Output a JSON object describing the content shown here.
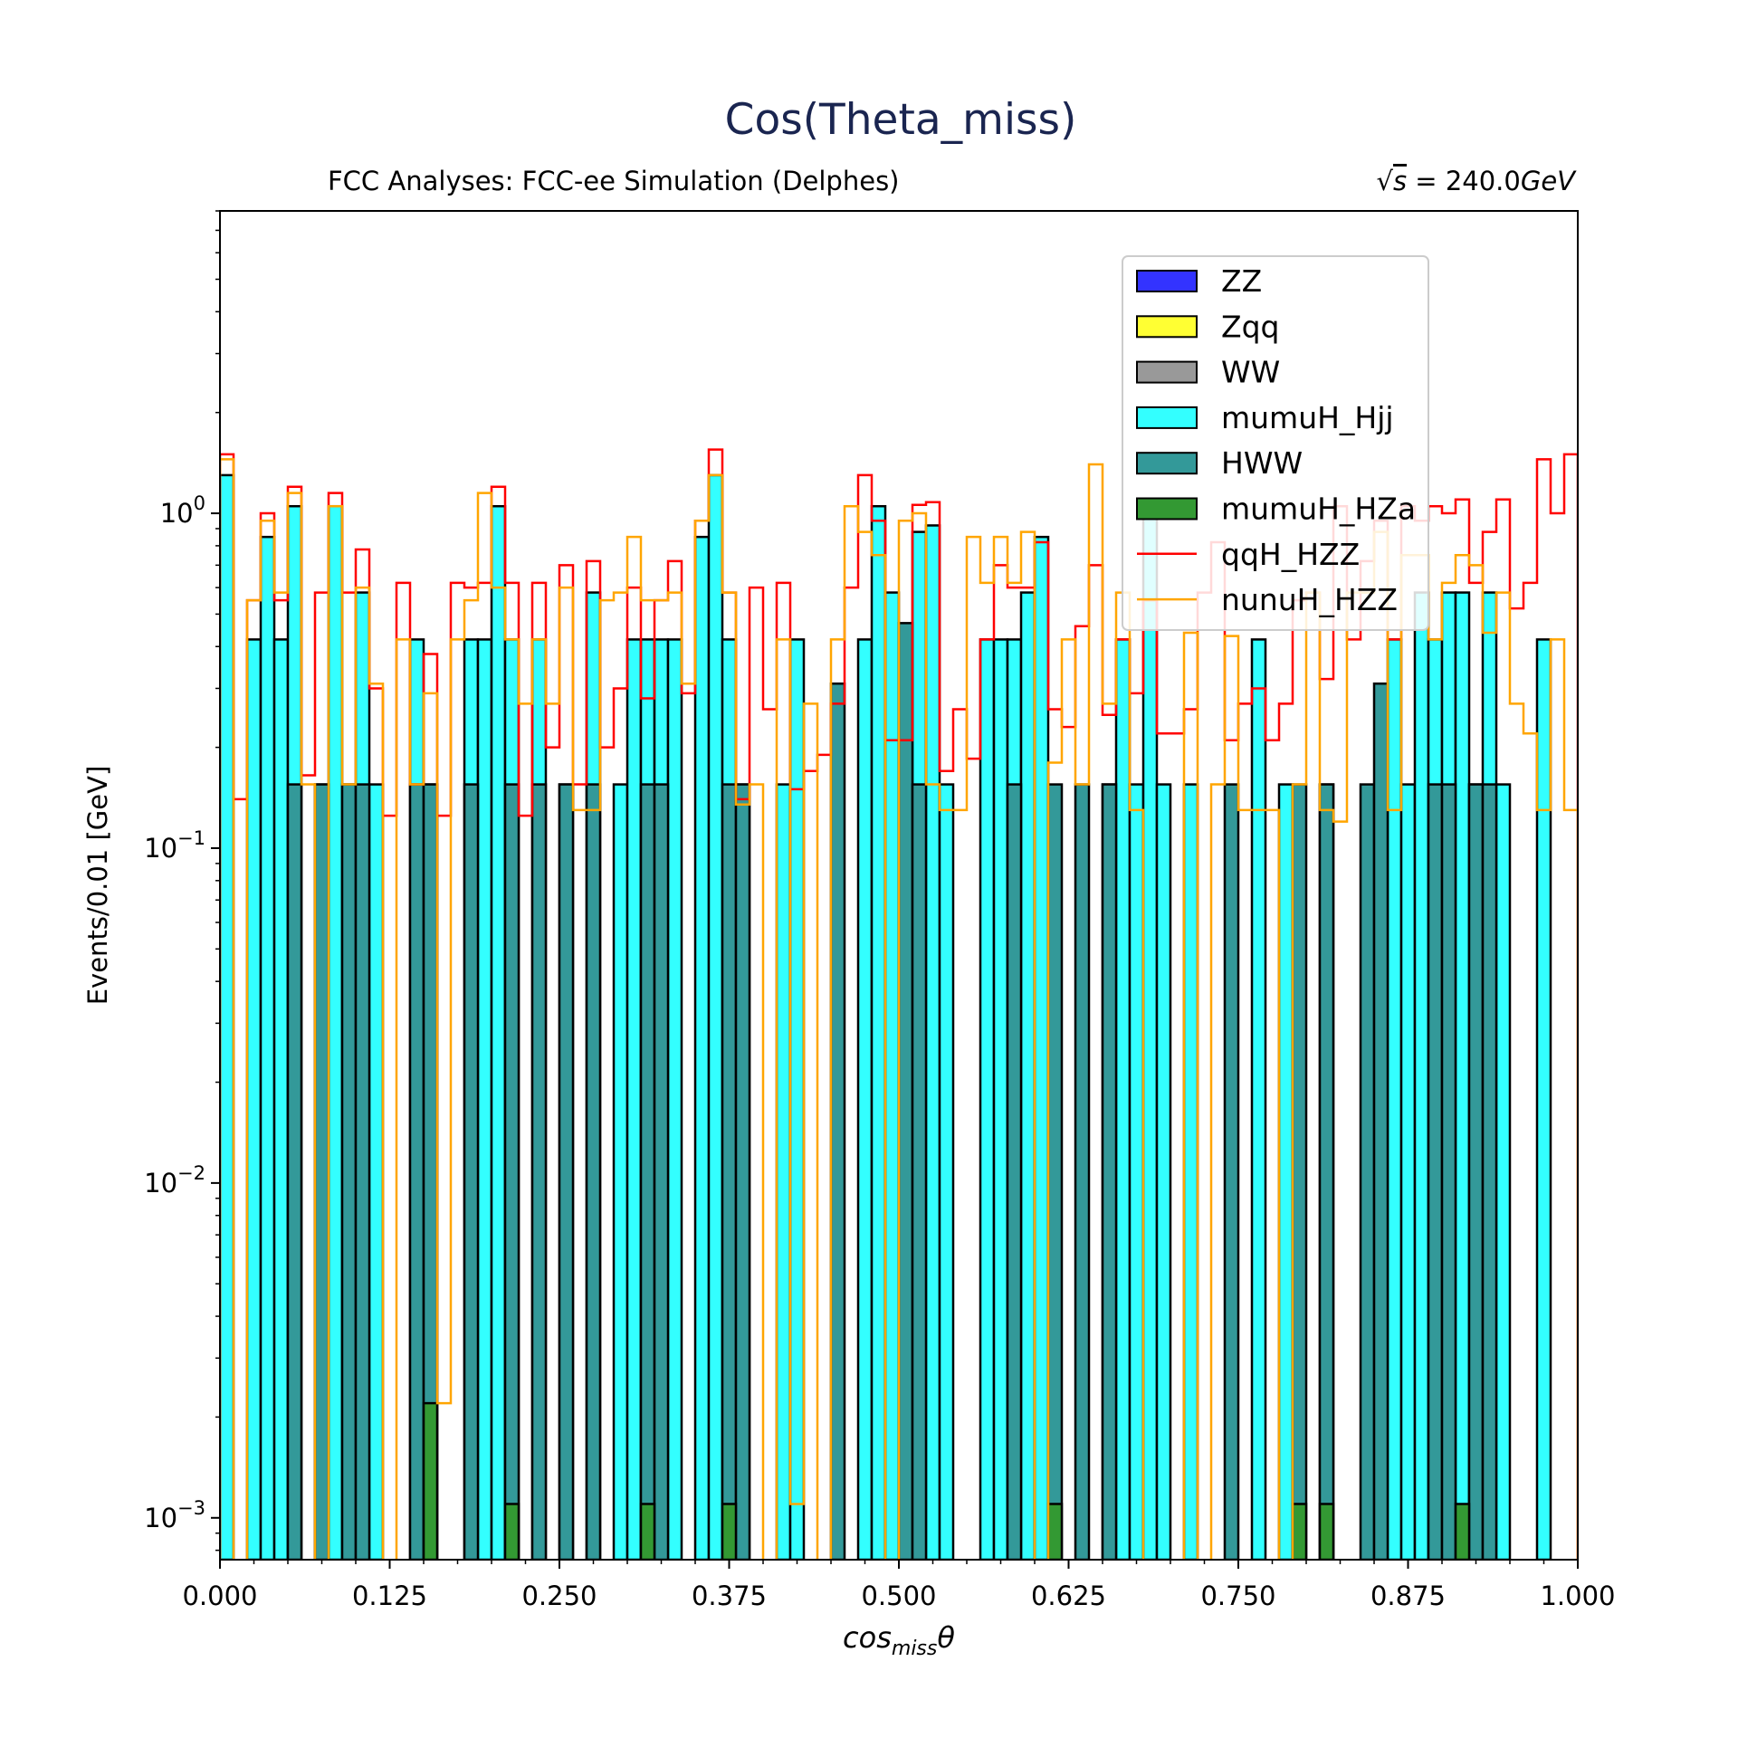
{
  "chart_data": {
    "type": "bar",
    "title": "Cos(Theta_miss)",
    "subtitle_left": "FCC Analyses: FCC-ee Simulation (Delphes)",
    "subtitle_right_prefix": "√",
    "subtitle_right_var": "s",
    "subtitle_right_suffix": " = 240.0",
    "subtitle_right_unit": "GeV",
    "xlabel_main": "cos",
    "xlabel_sub": "miss",
    "xlabel_tail": "θ",
    "ylabel": "Events/0.01 [GeV]",
    "xlim": [
      0,
      1
    ],
    "ylim": [
      0.00075,
      8
    ],
    "yscale": "log",
    "bin_width": 0.01,
    "x_ticks": [
      "0.000",
      "0.125",
      "0.250",
      "0.375",
      "0.500",
      "0.625",
      "0.750",
      "0.875",
      "1.000"
    ],
    "y_ticks": [
      {
        "base": "10",
        "exp": "−3",
        "value": 0.001
      },
      {
        "base": "10",
        "exp": "−2",
        "value": 0.01
      },
      {
        "base": "10",
        "exp": "−1",
        "value": 0.1
      },
      {
        "base": "10",
        "exp": "0",
        "value": 1
      }
    ],
    "legend_position": "top-right",
    "legend": [
      {
        "name": "ZZ",
        "kind": "patch",
        "color": "#3333ff"
      },
      {
        "name": "Zqq",
        "kind": "patch",
        "color": "#ffff33"
      },
      {
        "name": "WW",
        "kind": "patch",
        "color": "#999999"
      },
      {
        "name": "mumuH_Hjj",
        "kind": "patch",
        "color": "#33ffff"
      },
      {
        "name": "HWW",
        "kind": "patch",
        "color": "#339999"
      },
      {
        "name": "mumuH_HZa",
        "kind": "patch",
        "color": "#339933"
      },
      {
        "name": "qqH_HZZ",
        "kind": "line",
        "color": "#ff0000"
      },
      {
        "name": "nunuH_HZZ",
        "kind": "line",
        "color": "#ffa500"
      }
    ],
    "series": [
      {
        "name": "mumuH_HZa",
        "color": "#339933",
        "values": [
          0,
          0,
          0,
          0,
          0,
          0,
          0,
          0,
          0,
          0,
          0,
          0,
          0,
          0,
          0,
          0.0022,
          0,
          0,
          0,
          0,
          0,
          0.0011,
          0,
          0,
          0,
          0,
          0,
          0,
          0,
          0,
          0,
          0.0011,
          0,
          0,
          0,
          0,
          0,
          0.0011,
          0,
          0,
          0,
          0,
          0,
          0,
          0,
          0,
          0,
          0,
          0,
          0,
          0,
          0,
          0,
          0,
          0,
          0,
          0,
          0,
          0,
          0,
          0,
          0.0011,
          0,
          0,
          0,
          0,
          0,
          0,
          0,
          0,
          0,
          0,
          0,
          0,
          0,
          0,
          0,
          0,
          0,
          0.0011,
          0,
          0.0011,
          0,
          0,
          0,
          0,
          0,
          0,
          0,
          0,
          0,
          0.0011,
          0,
          0,
          0,
          0,
          0,
          0,
          0,
          0
        ]
      },
      {
        "name": "HWW",
        "color": "#339999",
        "values": [
          0,
          0,
          0,
          0,
          0,
          0.155,
          0,
          0.155,
          0,
          0.155,
          0.155,
          0,
          0,
          0,
          0.155,
          0.155,
          0,
          0,
          0.155,
          0,
          0,
          0.155,
          0,
          0.155,
          0,
          0.155,
          0,
          0.155,
          0,
          0,
          0,
          0.155,
          0.155,
          0,
          0,
          0,
          0,
          0.155,
          0.155,
          0,
          0,
          0,
          0,
          0,
          0,
          0.31,
          0,
          0,
          0,
          0,
          0.47,
          0.155,
          0,
          0,
          0,
          0,
          0,
          0,
          0.155,
          0,
          0,
          0.155,
          0,
          0.155,
          0,
          0.155,
          0,
          0,
          0,
          0,
          0,
          0,
          0,
          0,
          0.155,
          0,
          0,
          0,
          0,
          0.155,
          0,
          0.155,
          0,
          0,
          0.155,
          0.31,
          0,
          0,
          0,
          0.155,
          0.155,
          0,
          0.155,
          0.155,
          0,
          0,
          0,
          0,
          0,
          0
        ]
      },
      {
        "name": "mumuH_Hjj",
        "color": "#33ffff",
        "values": [
          1.3,
          0,
          0.42,
          0.85,
          0.42,
          1.05,
          0,
          0.155,
          1.05,
          0.155,
          0.58,
          0.155,
          0,
          0,
          0.42,
          0.155,
          0,
          0,
          0.42,
          0.42,
          1.05,
          0.42,
          0,
          0.42,
          0,
          0.155,
          0,
          0.58,
          0,
          0.155,
          0.42,
          0.42,
          0.42,
          0.42,
          0,
          0.85,
          1.3,
          0.42,
          0.155,
          0,
          0,
          0.155,
          0.42,
          0,
          0,
          0,
          0,
          0.42,
          1.05,
          0.58,
          0,
          0.88,
          0.92,
          0.155,
          0,
          0,
          0.42,
          0.42,
          0.42,
          0.58,
          0.85,
          0,
          0,
          0,
          0,
          0.155,
          0.42,
          0.155,
          1.05,
          0.155,
          0,
          0.155,
          0,
          0,
          0,
          0,
          0.42,
          0,
          0.155,
          0,
          0,
          0.155,
          0,
          0,
          0,
          0.155,
          0.42,
          0.155,
          0.58,
          0.42,
          0.58,
          0.58,
          0.155,
          0.58,
          0.155,
          0,
          0,
          0.42,
          0,
          0
        ]
      },
      {
        "name": "qqH_HZZ",
        "color": "#ff0000",
        "values": [
          1.5,
          0.14,
          0.55,
          1.0,
          0.55,
          1.2,
          0.165,
          0.58,
          1.15,
          0.58,
          0.78,
          0.3,
          0.125,
          0.62,
          0.155,
          0.38,
          0.125,
          0.62,
          0.6,
          0.62,
          1.2,
          0.62,
          0.125,
          0.62,
          0.2,
          0.7,
          0.155,
          0.72,
          0.2,
          0.3,
          0.6,
          0.28,
          0.55,
          0.72,
          0.29,
          0.95,
          1.55,
          0.58,
          0.14,
          0.6,
          0.26,
          0.62,
          0.15,
          0.17,
          0.19,
          0.27,
          0.6,
          1.3,
          0.95,
          0.21,
          0.21,
          1.06,
          1.08,
          0.17,
          0.26,
          0.185,
          0.42,
          0.7,
          0.6,
          0.6,
          0.82,
          0.26,
          0.23,
          0.46,
          0.7,
          0.25,
          0.42,
          0.29,
          0.55,
          0.22,
          0.22,
          0.26,
          0.58,
          0.82,
          0.21,
          0.27,
          0.3,
          0.21,
          0.27,
          0.55,
          0.58,
          0.32,
          1.05,
          0.42,
          0.72,
          0.95,
          0.42,
          1.05,
          0.95,
          1.05,
          1.0,
          1.1,
          0.62,
          0.88,
          1.1,
          0.52,
          0.62,
          1.45,
          1.0,
          1.5
        ]
      },
      {
        "name": "nunuH_HZZ",
        "color": "#ffa500",
        "values": [
          1.45,
          0.0007,
          0.55,
          0.95,
          0.58,
          1.15,
          0.155,
          0.0007,
          1.05,
          0.155,
          0.6,
          0.31,
          0.0007,
          0.42,
          0.155,
          0.29,
          0.0022,
          0.42,
          0.55,
          1.15,
          0.6,
          0.42,
          0.27,
          0.42,
          0.27,
          0.6,
          0.13,
          0.13,
          0.55,
          0.58,
          0.85,
          0.55,
          0.55,
          0.58,
          0.31,
          0.95,
          1.3,
          0.58,
          0.135,
          0.155,
          0.0007,
          0.42,
          0.0011,
          0.27,
          0.0007,
          0.42,
          1.05,
          0.88,
          0.75,
          0.0007,
          0.95,
          1.0,
          0.155,
          0.13,
          0.13,
          0.85,
          0.62,
          0.85,
          0.62,
          0.88,
          0.0007,
          0.18,
          0.42,
          0.155,
          1.4,
          0.27,
          0.58,
          0.13,
          0.0007,
          0.0007,
          0.0007,
          0.44,
          0.0007,
          0.155,
          0.43,
          0.13,
          0.13,
          0.13,
          0.0007,
          0.155,
          0.58,
          0.13,
          0.12,
          0.58,
          0.58,
          0.88,
          0.13,
          0.75,
          0.75,
          0.42,
          0.62,
          0.75,
          0.7,
          0.44,
          0.58,
          0.27,
          0.22,
          0.13,
          0.42,
          0.13
        ]
      }
    ]
  }
}
